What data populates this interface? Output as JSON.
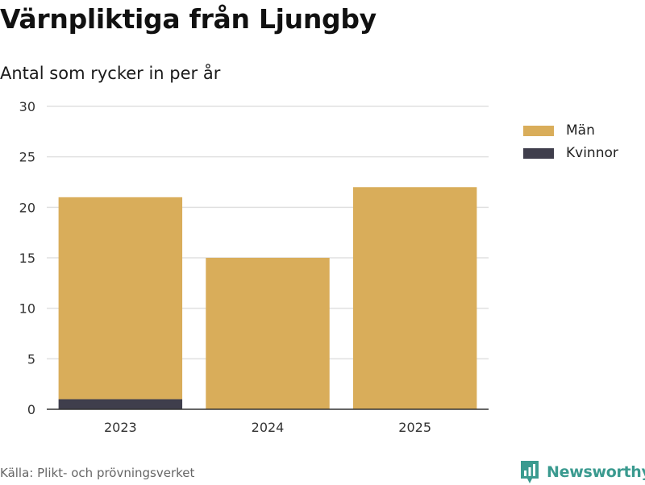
{
  "title": "Värnpliktiga från Ljungby",
  "subtitle": "Antal som rycker in per år",
  "source": "Källa: Plikt- och prövningsverket",
  "brand": {
    "name": "Newsworthy",
    "icon": "bar-chart-speech-bubble-icon",
    "color": "#3a9a8f"
  },
  "chart_data": {
    "type": "bar",
    "stacked": true,
    "categories": [
      "2023",
      "2024",
      "2025"
    ],
    "series": [
      {
        "name": "Kvinnor",
        "color": "#3f3e4c",
        "values": [
          1,
          0,
          0
        ]
      },
      {
        "name": "Män",
        "color": "#d9ad5a",
        "values": [
          20,
          15,
          22
        ]
      }
    ],
    "ylim": [
      0,
      30
    ],
    "yticks": [
      "0",
      "5",
      "10",
      "15",
      "20",
      "25",
      "30"
    ],
    "grid": true,
    "legend": [
      "Män",
      "Kvinnor"
    ],
    "legend_position": "right",
    "xlabel": "",
    "ylabel": ""
  }
}
